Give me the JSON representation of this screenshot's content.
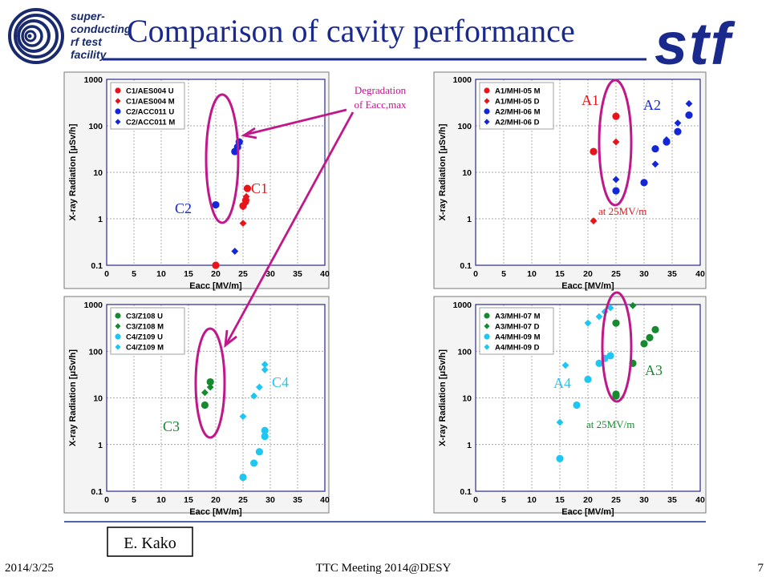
{
  "header": {
    "logo_lines": [
      "super-",
      "conducting",
      "rf  test",
      "facility"
    ],
    "title": "Comparison of cavity performance",
    "brand": "stf"
  },
  "colors": {
    "red": "#e8141a",
    "darkgreen": "#168a2e",
    "blue": "#1327d8",
    "cyan": "#1ec6f2",
    "annotation_magenta": "#c0188a",
    "title_blue": "#1a2a8c"
  },
  "annotations": {
    "degradation": [
      "Degradation",
      "of Eacc,max"
    ],
    "C1": "C1",
    "C2": "C2",
    "C3": "C3",
    "C4": "C4",
    "A1": "A1",
    "A2": "A2",
    "A3": "A3",
    "A4": "A4",
    "at25_top": "at 25MV/m",
    "at25_bottom": "at 25MV/m"
  },
  "footer": {
    "date": "2014/3/25",
    "meeting": "TTC Meeting 2014@DESY",
    "page": "7",
    "author": "E. Kako"
  },
  "chart_data": [
    {
      "type": "scatter",
      "xlabel": "Eacc  [MV/m]",
      "ylabel": "X-ray Radiation  [μSv/h]",
      "xlim": [
        0,
        40
      ],
      "ylim": [
        0.1,
        1000
      ],
      "yscale": "log",
      "x_ticks": [
        "0",
        "5",
        "10",
        "15",
        "20",
        "25",
        "30",
        "35",
        "40"
      ],
      "y_ticks": [
        "0.1",
        "1",
        "10",
        "100",
        "1000"
      ],
      "grid": true,
      "legend": "top-left",
      "series": [
        {
          "name": "C1/AES004 U",
          "color": "#e8141a",
          "marker": "circle",
          "points": [
            [
              20,
              0.1
            ],
            [
              25,
              1.9
            ],
            [
              25.5,
              2.5
            ],
            [
              25.8,
              4.5
            ]
          ]
        },
        {
          "name": "C1/AES004 M",
          "color": "#e8141a",
          "marker": "diamond",
          "points": [
            [
              25,
              0.8
            ],
            [
              25,
              1.8
            ],
            [
              25.5,
              2.2
            ],
            [
              25.6,
              3
            ]
          ]
        },
        {
          "name": "C2/ACC011 U",
          "color": "#1327d8",
          "marker": "circle",
          "points": [
            [
              20,
              2
            ],
            [
              23.5,
              28
            ],
            [
              24,
              35
            ],
            [
              24.3,
              45
            ]
          ]
        },
        {
          "name": "C2/ACC011 M",
          "color": "#1327d8",
          "marker": "diamond",
          "points": [
            [
              23.5,
              0.2
            ],
            [
              23.5,
              28
            ]
          ]
        }
      ]
    },
    {
      "type": "scatter",
      "xlabel": "Eacc  [MV/m]",
      "ylabel": "X-ray Radiation  [μSv/h]",
      "xlim": [
        0,
        40
      ],
      "ylim": [
        0.1,
        1000
      ],
      "yscale": "log",
      "x_ticks": [
        "0",
        "5",
        "10",
        "15",
        "20",
        "25",
        "30",
        "35",
        "40"
      ],
      "y_ticks": [
        "0.1",
        "1",
        "10",
        "100",
        "1000"
      ],
      "grid": true,
      "legend": "top-left",
      "series": [
        {
          "name": "A1/MHI-05 M",
          "color": "#e8141a",
          "marker": "circle",
          "points": [
            [
              21,
              28
            ],
            [
              25,
              160
            ]
          ]
        },
        {
          "name": "A1/MHI-05 D",
          "color": "#e8141a",
          "marker": "diamond",
          "points": [
            [
              21,
              0.9
            ],
            [
              25,
              45
            ]
          ]
        },
        {
          "name": "A2/MHI-06 M",
          "color": "#1327d8",
          "marker": "circle",
          "points": [
            [
              25,
              4
            ],
            [
              30,
              6
            ],
            [
              32,
              32
            ],
            [
              34,
              45
            ],
            [
              36,
              75
            ],
            [
              38,
              170
            ]
          ]
        },
        {
          "name": "A2/MHI-06 D",
          "color": "#1327d8",
          "marker": "diamond",
          "points": [
            [
              25,
              7
            ],
            [
              30,
              6
            ],
            [
              32,
              15
            ],
            [
              34,
              50
            ],
            [
              36,
              115
            ],
            [
              38,
              300
            ]
          ]
        }
      ]
    },
    {
      "type": "scatter",
      "xlabel": "Eacc  [MV/m]",
      "ylabel": "X-ray Radiation  [μSv/h]",
      "xlim": [
        0,
        40
      ],
      "ylim": [
        0.1,
        1000
      ],
      "yscale": "log",
      "x_ticks": [
        "0",
        "5",
        "10",
        "15",
        "20",
        "25",
        "30",
        "35",
        "40"
      ],
      "y_ticks": [
        "0.1",
        "1",
        "10",
        "100",
        "1000"
      ],
      "grid": true,
      "legend": "top-left",
      "series": [
        {
          "name": "C3/Z108 U",
          "color": "#168a2e",
          "marker": "circle",
          "points": [
            [
              18,
              7
            ],
            [
              19,
              22
            ]
          ]
        },
        {
          "name": "C3/Z108 M",
          "color": "#168a2e",
          "marker": "diamond",
          "points": [
            [
              18,
              13
            ],
            [
              19,
              17
            ]
          ]
        },
        {
          "name": "C4/Z109 U",
          "color": "#1ec6f2",
          "marker": "circle",
          "points": [
            [
              25,
              0.2
            ],
            [
              27,
              0.4
            ],
            [
              28,
              0.7
            ],
            [
              29,
              1.5
            ],
            [
              29,
              2
            ]
          ]
        },
        {
          "name": "C4/Z109 M",
          "color": "#1ec6f2",
          "marker": "diamond",
          "points": [
            [
              25,
              4
            ],
            [
              27,
              11
            ],
            [
              28,
              17
            ],
            [
              29,
              40
            ],
            [
              29,
              52
            ]
          ]
        }
      ]
    },
    {
      "type": "scatter",
      "xlabel": "Eacc  [MV/m]",
      "ylabel": "X-ray Radiation  [μSv/h]",
      "xlim": [
        0,
        40
      ],
      "ylim": [
        0.1,
        1000
      ],
      "yscale": "log",
      "x_ticks": [
        "0",
        "5",
        "10",
        "15",
        "20",
        "25",
        "30",
        "35",
        "40"
      ],
      "y_ticks": [
        "0.1",
        "1",
        "10",
        "100",
        "1000"
      ],
      "grid": true,
      "legend": "top-left",
      "series": [
        {
          "name": "A3/MHI-07 M",
          "color": "#168a2e",
          "marker": "circle",
          "points": [
            [
              25,
              11
            ],
            [
              25,
              12
            ],
            [
              25,
              400
            ],
            [
              28,
              55
            ],
            [
              30,
              145
            ],
            [
              31,
              195
            ],
            [
              32,
              290
            ]
          ]
        },
        {
          "name": "A3/MHI-07 D",
          "color": "#168a2e",
          "marker": "diamond",
          "points": [
            [
              28,
              950
            ]
          ]
        },
        {
          "name": "A4/MHI-09 M",
          "color": "#1ec6f2",
          "marker": "circle",
          "points": [
            [
              15,
              0.5
            ],
            [
              18,
              7
            ],
            [
              20,
              25
            ],
            [
              22,
              55
            ],
            [
              23,
              70
            ],
            [
              24,
              80
            ]
          ]
        },
        {
          "name": "A4/MHI-09 D",
          "color": "#1ec6f2",
          "marker": "diamond",
          "points": [
            [
              15,
              3
            ],
            [
              16,
              50
            ],
            [
              20,
              400
            ],
            [
              22,
              550
            ],
            [
              23,
              700
            ],
            [
              24,
              850
            ]
          ]
        }
      ]
    }
  ]
}
